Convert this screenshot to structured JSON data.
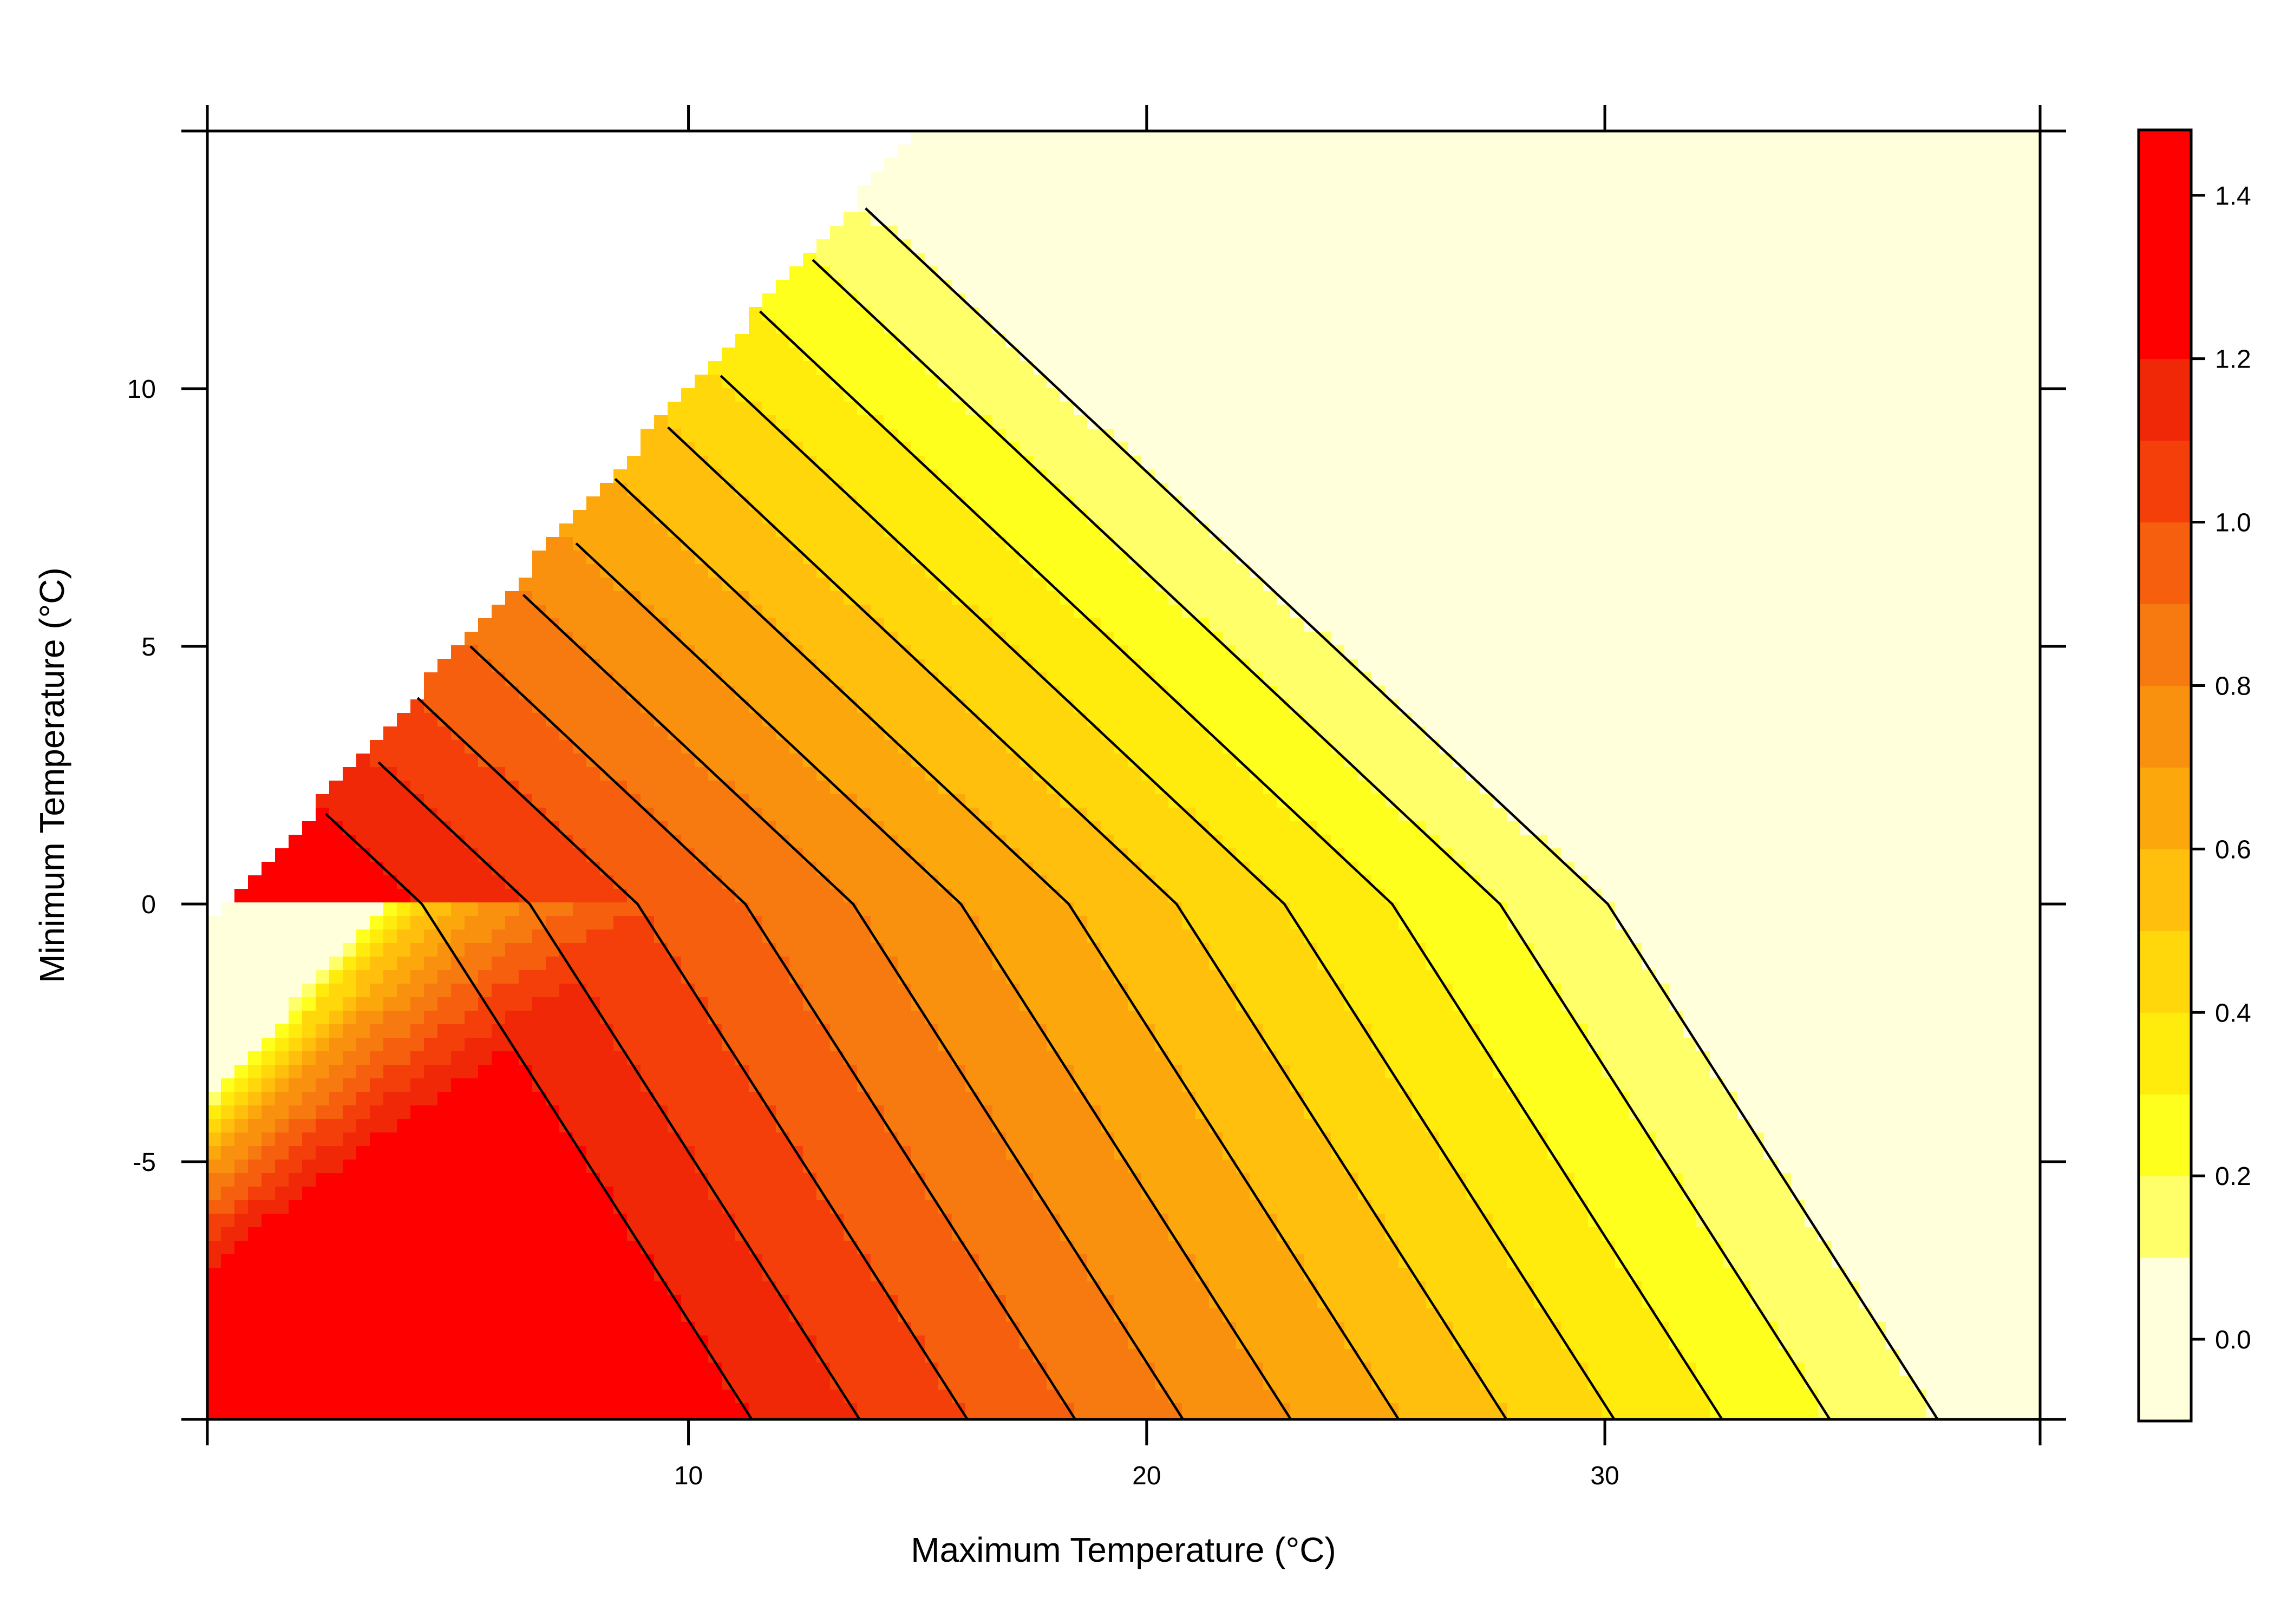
{
  "chart_data": {
    "type": "heatmap",
    "subtype": "filled-contour",
    "title": "",
    "xlabel": "Maximum Temperature (°C)",
    "ylabel": "Minimum Temperature (°C)",
    "xlim": [
      -0.5,
      39.5
    ],
    "ylim": [
      -10,
      15
    ],
    "x_ticks": [
      10,
      20,
      30
    ],
    "x_tick_labels": [
      "10",
      "20",
      "30"
    ],
    "y_ticks": [
      -5,
      0,
      5,
      10
    ],
    "y_tick_labels": [
      "-5",
      "0",
      "5",
      "10"
    ],
    "colorbar": {
      "ticks": [
        0.0,
        0.2,
        0.4,
        0.6,
        0.8,
        1.0,
        1.2,
        1.4
      ],
      "tick_labels": [
        "0.0",
        "0.2",
        "0.4",
        "0.6",
        "0.8",
        "1.0",
        "1.2",
        "1.4"
      ],
      "range": [
        -0.1,
        1.48
      ],
      "levels": [
        -0.1,
        0.1,
        0.2,
        0.3,
        0.4,
        0.5,
        0.6,
        0.7,
        0.8,
        0.9,
        1.0,
        1.1,
        1.2,
        1.48
      ],
      "colors": [
        "#FFFFDC",
        "#FFFF6A",
        "#FFFF1E",
        "#FFEC0C",
        "#FFD70A",
        "#FFBF0C",
        "#FCA80C",
        "#FA910E",
        "#F77A10",
        "#F55F0E",
        "#F43F0B",
        "#F02808",
        "#FF0000"
      ]
    },
    "grid": false,
    "legend": "colorbar-right",
    "undefined_region": "white area where minimum temperature exceeds maximum temperature",
    "note": "Values are highest near the diagonal at low temperatures and fall off toward high maximum temperatures; a kink in the contours appears at a minimum temperature of 0 °C."
  }
}
